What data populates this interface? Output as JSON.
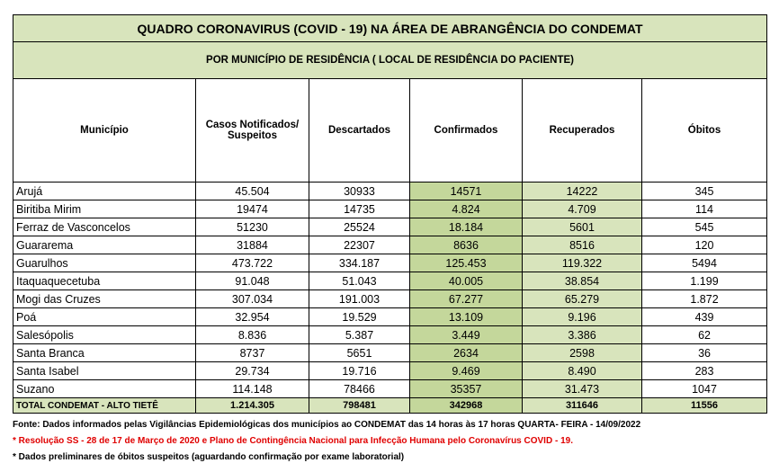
{
  "title": "QUADRO CORONAVIRUS (COVID - 19) NA ÁREA DE ABRANGÊNCIA DO CONDEMAT",
  "subtitle": "POR MUNICÍPIO DE RESIDÊNCIA ( LOCAL DE RESIDÊNCIA DO PACIENTE)",
  "table": {
    "columns": [
      "Município",
      "Casos Notificados/ Suspeitos",
      "Descartados",
      "Confirmados",
      "Recuperados",
      "Óbitos"
    ],
    "rows": [
      [
        "Arujá",
        "45.504",
        "30933",
        "14571",
        "14222",
        "345"
      ],
      [
        "Biritiba Mirim",
        "19474",
        "14735",
        "4.824",
        "4.709",
        "114"
      ],
      [
        "Ferraz de Vasconcelos",
        "51230",
        "25524",
        "18.184",
        "5601",
        "545"
      ],
      [
        "Guararema",
        "31884",
        "22307",
        "8636",
        "8516",
        "120"
      ],
      [
        "Guarulhos",
        "473.722",
        "334.187",
        "125.453",
        "119.322",
        "5494"
      ],
      [
        "Itaquaquecetuba",
        "91.048",
        "51.043",
        "40.005",
        "38.854",
        "1.199"
      ],
      [
        "Mogi das Cruzes",
        "307.034",
        "191.003",
        "67.277",
        "65.279",
        "1.872"
      ],
      [
        "Poá",
        "32.954",
        "19.529",
        "13.109",
        "9.196",
        "439"
      ],
      [
        "Salesópolis",
        "8.836",
        "5.387",
        "3.449",
        "3.386",
        "62"
      ],
      [
        "Santa Branca",
        "8737",
        "5651",
        "2634",
        "2598",
        "36"
      ],
      [
        "Santa Isabel",
        "29.734",
        "19.716",
        "9.469",
        "8.490",
        "283"
      ],
      [
        "Suzano",
        "114.148",
        "78466",
        "35357",
        "31.473",
        "1047"
      ]
    ],
    "total": [
      "TOTAL CONDEMAT - ALTO TIETÊ",
      "1.214.305",
      "798481",
      "342968",
      "311646",
      "11556"
    ]
  },
  "notes": [
    "Fonte: Dados informados pelas Vigilâncias Epidemiológicas dos municípios ao CONDEMAT das 14 horas às 17 horas QUARTA- FEIRA - 14/09/2022",
    "* Resolução SS - 28 de 17 de Março de 2020 e Plano de Contingência Nacional para Infecção Humana pelo Coronavírus COVID - 19.",
    "* Dados preliminares de óbitos suspeitos (aguardando confirmação por exame laboratorial)"
  ]
}
